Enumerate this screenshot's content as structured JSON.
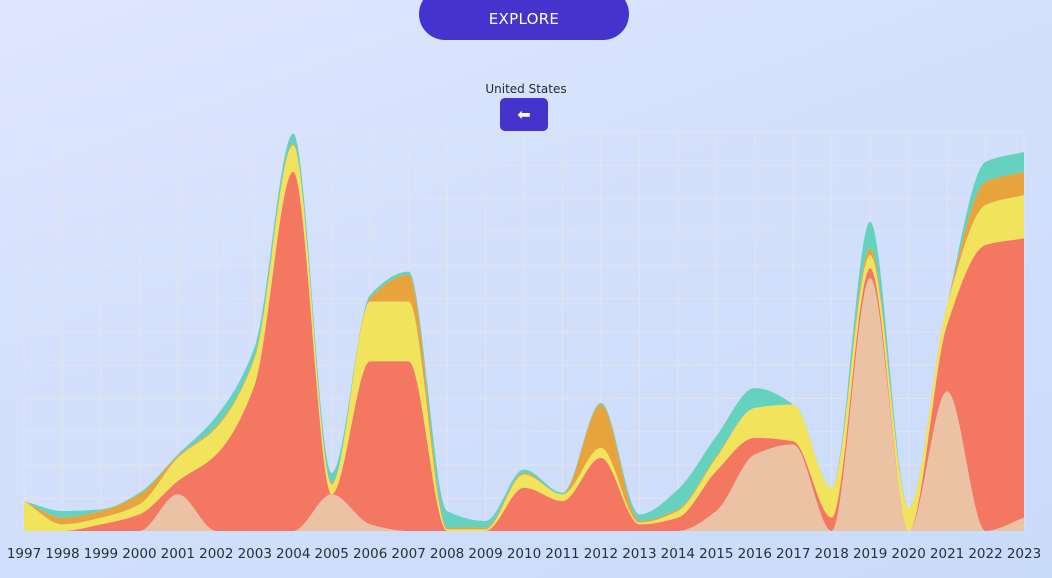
{
  "explore_label": "EXPLORE",
  "region_label": "United States",
  "back_icon": "⬅",
  "chart_data": {
    "type": "area",
    "stacked": true,
    "curve": "smooth",
    "grid": true,
    "legend": "none",
    "title": "",
    "xlabel": "",
    "ylabel": "",
    "x": [
      1997,
      1998,
      1999,
      2000,
      2001,
      2002,
      2003,
      2004,
      2005,
      2006,
      2007,
      2008,
      2009,
      2010,
      2011,
      2012,
      2013,
      2014,
      2015,
      2016,
      2017,
      2018,
      2019,
      2020,
      2021,
      2022,
      2023
    ],
    "xlim": [
      1997,
      2023
    ],
    "ylim": [
      0,
      12
    ],
    "series": [
      {
        "color": "#ebc3a4",
        "values": [
          0,
          0,
          0,
          0,
          1.1,
          0,
          0,
          0,
          1.1,
          0.2,
          0,
          0,
          0,
          0,
          0,
          0,
          0,
          0,
          0.6,
          2.3,
          2.6,
          0,
          7.6,
          0,
          4.2,
          0,
          0.4
        ]
      },
      {
        "color": "#f47762",
        "values": [
          0,
          0,
          0.2,
          0.5,
          0.4,
          2.3,
          4.4,
          10.8,
          0,
          4.9,
          5.1,
          0,
          0,
          1.3,
          0.9,
          2.2,
          0.2,
          0.4,
          1.2,
          0.5,
          0.1,
          0.4,
          0.3,
          0,
          2,
          8.6,
          8.4
        ]
      },
      {
        "color": "#f2e35d",
        "values": [
          0.9,
          0.2,
          0.2,
          0.3,
          0.7,
          0.8,
          0.8,
          0.8,
          0.3,
          1.8,
          1.8,
          0.05,
          0.05,
          0.4,
          0.2,
          0.3,
          0.05,
          0.2,
          0.4,
          0.9,
          1.1,
          0.9,
          0.4,
          0.7,
          0.6,
          1.2,
          1.3
        ]
      },
      {
        "color": "#e8a43c",
        "values": [
          0,
          0.2,
          0.2,
          0.3,
          0.05,
          0.05,
          0.05,
          0.05,
          0.05,
          0.1,
          0.8,
          0.05,
          0.05,
          0.05,
          0,
          1.3,
          0.05,
          0.05,
          0.05,
          0,
          0,
          0,
          0.2,
          0,
          0,
          0.7,
          0.7
        ]
      },
      {
        "color": "#65d2bf",
        "values": [
          0,
          0.2,
          0.05,
          0.05,
          0.05,
          0.3,
          0.3,
          0.3,
          0.3,
          0.1,
          0.1,
          0.5,
          0.2,
          0.1,
          0.05,
          0.05,
          0.2,
          0.6,
          0.6,
          0.6,
          0,
          0,
          0.8,
          0,
          0,
          0.6,
          0.6
        ]
      }
    ]
  }
}
